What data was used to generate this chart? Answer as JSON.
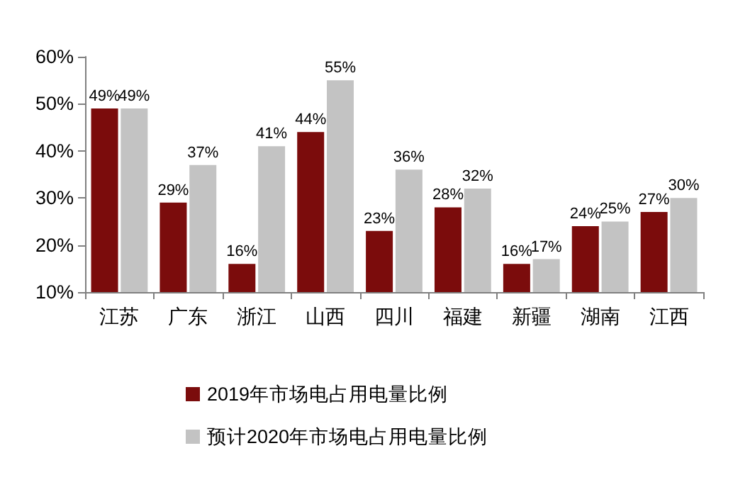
{
  "chart_data": {
    "type": "bar",
    "categories": [
      "江苏",
      "广东",
      "浙江",
      "山西",
      "四川",
      "福建",
      "新疆",
      "湖南",
      "江西"
    ],
    "series": [
      {
        "name": "2019年市场电占用电量比例",
        "color": "#7b0c0c",
        "values": [
          49,
          29,
          16,
          44,
          23,
          28,
          16,
          24,
          27
        ],
        "value_labels": [
          "49%",
          "29%",
          "16%",
          "44%",
          "23%",
          "28%",
          "16%",
          "24%",
          "27%"
        ]
      },
      {
        "name": "预计2020年市场电占用电量比例",
        "color": "#c3c3c3",
        "values": [
          49,
          37,
          41,
          55,
          36,
          32,
          17,
          25,
          30
        ],
        "value_labels": [
          "49%",
          "37%",
          "41%",
          "55%",
          "36%",
          "32%",
          "17%",
          "25%",
          "30%"
        ]
      }
    ],
    "ylim": [
      10,
      60
    ],
    "yticks": [
      {
        "value": 10,
        "label": "10%"
      },
      {
        "value": 20,
        "label": "20%"
      },
      {
        "value": 30,
        "label": "30%"
      },
      {
        "value": 40,
        "label": "40%"
      },
      {
        "value": 50,
        "label": "50%"
      },
      {
        "value": 60,
        "label": "60%"
      }
    ],
    "grid": false,
    "legend": "bottom"
  }
}
